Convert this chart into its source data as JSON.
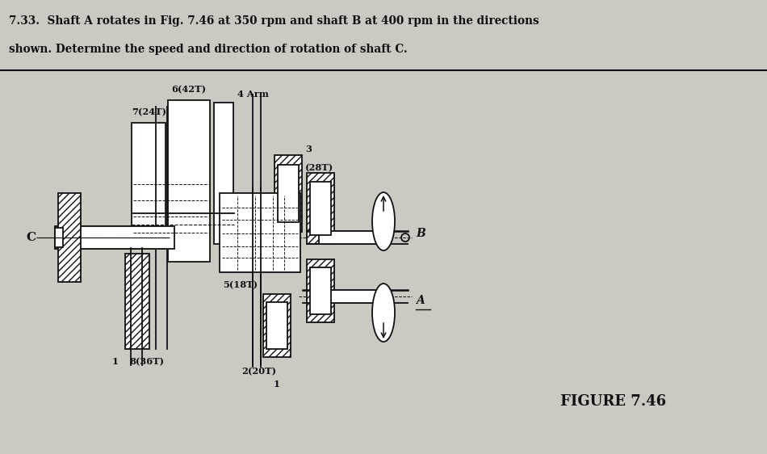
{
  "title_line1": "7.33.  Shaft A rotates in Fig. 7.46 at 350 rpm and shaft B at 400 rpm in the directions",
  "title_line2": "shown. Determine the speed and direction of rotation of shaft C.",
  "figure_label": "FIGURE 7.46",
  "bg_color": "#ccc8c2",
  "header_bg": "#dedad4",
  "line_color": "#111111",
  "text_color": "#111111",
  "labels": {
    "gear6": "6(42T)",
    "gear7": "7(24T)",
    "arm4": "4 Arm",
    "num3": "3",
    "gear3": "(28T)",
    "gear5": "5(18T)",
    "gear8": "8(36T)",
    "gear2": "2(20T)",
    "shaft_C": "C",
    "shaft_B": "B",
    "shaft_A": "A",
    "num1_left": "1",
    "num1_bottom": "1"
  }
}
